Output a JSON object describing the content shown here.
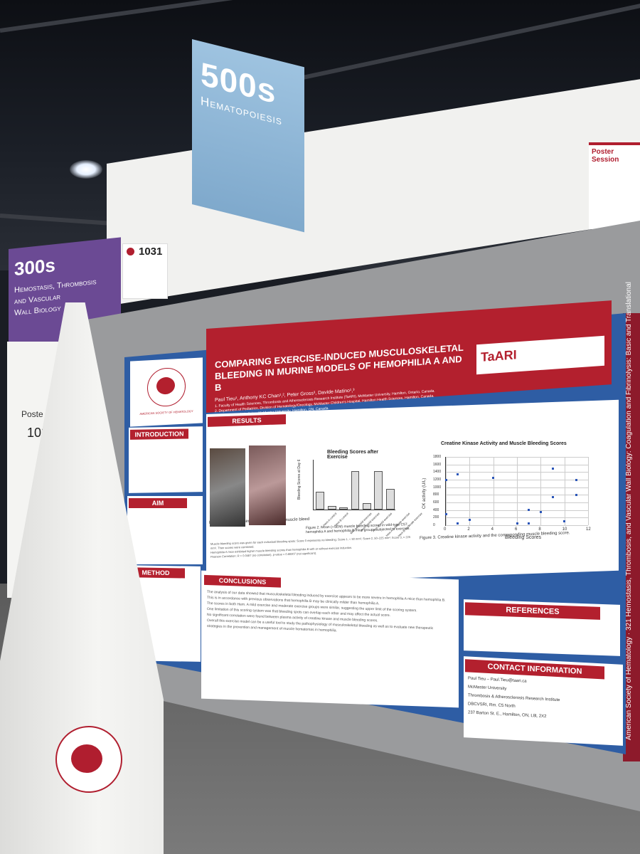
{
  "signs": {
    "hall_500": {
      "number": "500s",
      "topic": "Hematopoiesis"
    },
    "hall_300": {
      "number": "300s",
      "topic_lines": [
        "Hemostasis, Thrombosis",
        "and Vascular",
        "Wall Biology"
      ]
    },
    "board_number": "1031",
    "left_board": {
      "line1": "Poste",
      "line2": "103"
    },
    "notice_title": "Poster Session"
  },
  "poster": {
    "title_line1": "COMPARING EXERCISE-INDUCED MUSCULOSKELETAL",
    "title_line2": "BLEEDING IN MURINE MODELS OF HEMOPHILIA A AND B",
    "authors": "Paul Tieu¹, Anthony KC Chan¹,², Peter Gross³, Davide Matino¹,³",
    "affiliations": [
      "1. Faculty of Health Sciences, Thrombosis and Atherosclerosis Research Institute (TaARI), McMaster University, Hamilton, Ontario, Canada.",
      "2. Department of Pediatrics, Division of Hematology/Oncology, McMaster Children's Hospital, Hamilton Health Sciences, Hamilton, Canada.",
      "3. Department of Medicine, McMaster University, Hamilton, ON, Canada."
    ],
    "institute_logo": "TaARI",
    "society_logo": "AMERICAN SOCIETY OF HEMATOLOGY",
    "sections": {
      "introduction": "INTRODUCTION",
      "aim": "AIM",
      "method": "METHOD",
      "results": "RESULTS",
      "conclusions": "CONCLUSIONS",
      "references": "REFERENCES",
      "contact": "CONTACT INFORMATION"
    },
    "figure1_caption": "Figure 1. Mice running on treadmill and muscle bleed",
    "figure2_caption": "Figure 2. Mean (+SEM) muscle bleeding scores in wild-type C57, hemophilia A and hemophilia B mice groups subjected to exercise.",
    "figure3_caption": "Figure 3. Creatine kinase activity and the corresponding muscle bleeding score.",
    "results_bullets": [
      "Muscle bleeding score was given for each individual bleeding spots: Score 0 represents no bleeding; Score 1, < 50 mm²; Score 2, 50–225 mm²; Score 3, > 225 mm². Then scores were combined.",
      "Hemophilia A mice exhibited higher muscle bleeding scores than hemophilia B with or without exercise induction.",
      "Pearson Correlation: R = 0.0487 (no correlation), p-value = 0.88307 (not significant)."
    ],
    "conclusion_bullets": [
      "The analysis of our data showed that musculoskeletal bleeding induced by exercise appears to be more severe in hemophilia A mice than hemophilia B. This is in accordance with previous observations that hemophilia B may be clinically milder than hemophilia A.",
      "The scores in both Hem. A mild exercise and moderate exercise groups were similar, suggesting the upper limit of the scoring system.",
      "One limitation of this scoring system was that bleeding spots can overlap each other and may affect the actual score.",
      "No significant correlation were found between plasma activity of creatine kinase and muscle bleeding scores.",
      "Overall this exercise model can be a useful tool to study the pathophysiology of musculoskeletal bleeding as well as to evaluate new therapeutic strategies in the prevention and management of muscle hematomas in hemophilia."
    ],
    "contact_lines": [
      "Paul Tieu – Paul.Tieu@taari.ca",
      "McMaster University",
      "Thrombosis & Atherosclerosis Research Institute",
      "DBCVSRI, Rm. C5 North",
      "237 Barton St. E., Hamilton, ON, L8L 2X2"
    ],
    "side_banner": "American Society of Hematology · 321 Hemostasis, Thrombosis, and Vascular Wall Biology: Coagulation and Fibrinolysis: Basic and Translational"
  },
  "chart_data": [
    {
      "type": "bar",
      "title": "Bleeding Scores after Exercise",
      "ylabel": "Bleeding Scores at Day 6",
      "categories": [
        "Hem A control",
        "Hem B control",
        "Wild-type mild exercise",
        "Hem A mild exercise",
        "Hem B mild exercise",
        "Hem A moderate exercise",
        "Hem B moderate exercise"
      ],
      "values": [
        2.0,
        0.3,
        0.0,
        4.5,
        0.6,
        4.5,
        2.3
      ],
      "ylim": [
        0,
        6
      ]
    },
    {
      "type": "scatter",
      "title": "Creatine Kinase Activity and Muscle Bleeding Scores",
      "xlabel": "Bleeding Scores",
      "ylabel": "CK activity (U/L)",
      "xlim": [
        0,
        12
      ],
      "ylim": [
        0,
        1800
      ],
      "x_ticks": [
        "0",
        "2",
        "4",
        "6",
        "8",
        "10",
        "12"
      ],
      "y_ticks": [
        "0",
        "200",
        "400",
        "600",
        "800",
        "1000",
        "1200",
        "1400",
        "1600",
        "1800"
      ],
      "points": [
        {
          "x": 0,
          "y": 1200
        },
        {
          "x": 0,
          "y": 300
        },
        {
          "x": 1,
          "y": 1350
        },
        {
          "x": 1,
          "y": 50
        },
        {
          "x": 2,
          "y": 150
        },
        {
          "x": 4,
          "y": 1250
        },
        {
          "x": 6,
          "y": 50
        },
        {
          "x": 7,
          "y": 400
        },
        {
          "x": 7,
          "y": 50
        },
        {
          "x": 8,
          "y": 350
        },
        {
          "x": 9,
          "y": 1500
        },
        {
          "x": 9,
          "y": 750
        },
        {
          "x": 10,
          "y": 100
        },
        {
          "x": 11,
          "y": 1200
        },
        {
          "x": 11,
          "y": 800
        }
      ]
    }
  ]
}
